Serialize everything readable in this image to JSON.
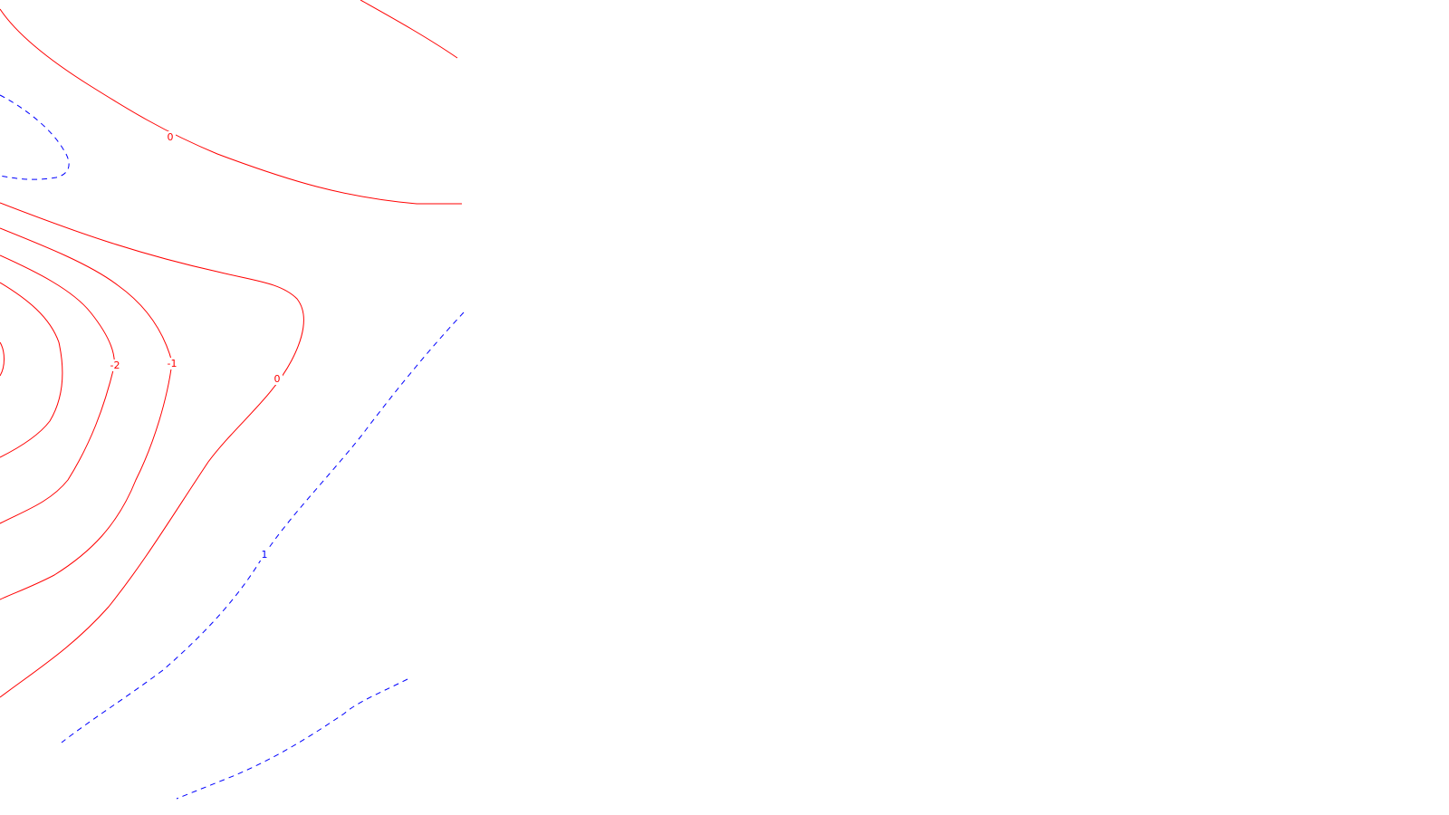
{
  "colors": {
    "background": "#ffffff",
    "negative_or_zero_line": "#ff0000",
    "positive_line": "#0000ff"
  },
  "line_styles": {
    "negative_or_zero": "solid",
    "positive": "dashed"
  },
  "contour_labels": {
    "zero_top": "0",
    "minus_two": "-2",
    "minus_one": "-1",
    "zero_mid": "0",
    "one": "1"
  }
}
